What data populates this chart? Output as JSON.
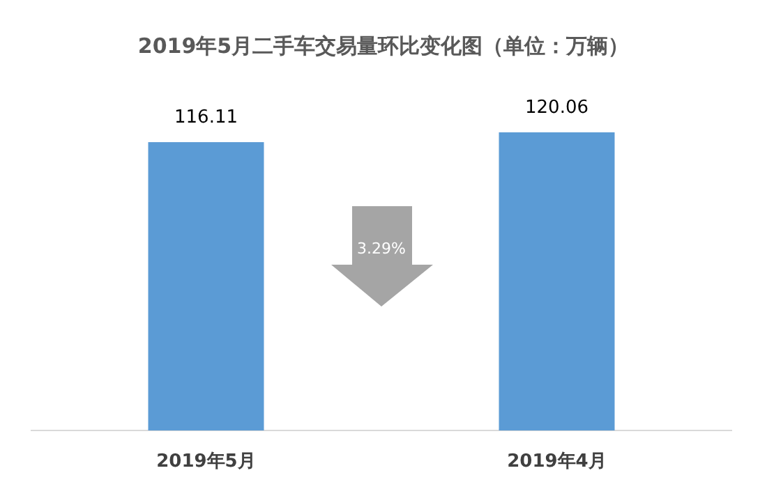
{
  "chart_data": {
    "type": "bar",
    "title": "2019年5月二手车交易量环比变化图（单位：万辆）",
    "categories": [
      "2019年5月",
      "2019年4月"
    ],
    "values": [
      116.11,
      120.06
    ],
    "color": "#5b9bd5",
    "data_labels": true,
    "tick_labels": "x",
    "annotations": [
      "3.29%"
    ]
  }
}
